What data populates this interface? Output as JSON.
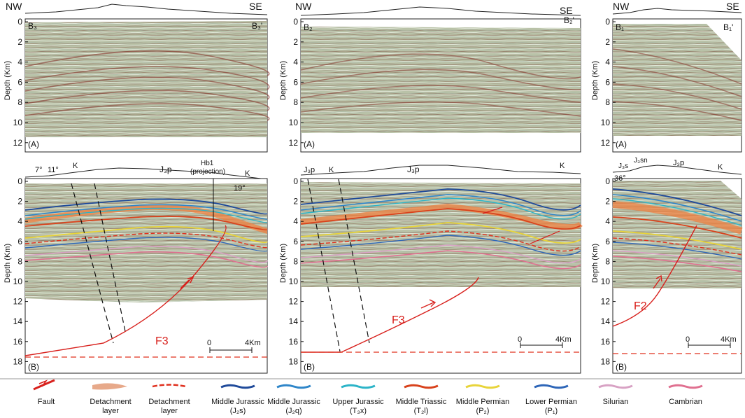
{
  "colors": {
    "fault": "#d8201c",
    "seismic_base": "#b7c0a6",
    "detachment_layer_fill": "#e7a98a",
    "detachment_dashed": "#e0301e",
    "j2s": "#1f4a9a",
    "j2q": "#2f86c9",
    "t3x": "#2cb4c8",
    "t2l": "#d8421c",
    "p2": "#e8d43a",
    "p1": "#2e66b8",
    "silurian": "#d8a2c4",
    "cambrian": "#e07090"
  },
  "panels": {
    "b3_top": {
      "nw": "NW",
      "se": "SE",
      "left_id": "B₃",
      "right_id": "B₃'",
      "tag": "(A)"
    },
    "b2_top": {
      "nw": "NW",
      "se": "SE",
      "left_id": "B₂",
      "right_id": "B₂'",
      "tag": "(A)"
    },
    "b1_top": {
      "nw": "NW",
      "se": "SE",
      "left_id": "B₁",
      "right_id": "B₁'",
      "tag": "(A)"
    },
    "b3_bottom": {
      "tag": "(B)",
      "fault": "F3",
      "scale_zero": "0",
      "scale_end": "4Km",
      "surface_labels": [
        "7°",
        "11°",
        "K",
        "J₃p",
        "K",
        "19°"
      ],
      "well_label": "Hb1",
      "well_sub": "(projection)"
    },
    "b2_bottom": {
      "tag": "(B)",
      "fault": "F3",
      "scale_zero": "0",
      "scale_end": "4Km",
      "surface_labels": [
        "J₃p",
        "K",
        "J₃p",
        "K"
      ]
    },
    "b1_bottom": {
      "tag": "(B)",
      "fault": "F2",
      "scale_zero": "0",
      "scale_end": "4Km",
      "surface_labels": [
        "J₃s",
        "J₃sn",
        "J₃p",
        "K",
        "36°"
      ]
    }
  },
  "axis": {
    "ylabel": "Depth (Km)",
    "top_ticks": [
      "0",
      "2",
      "4",
      "6",
      "8",
      "10",
      "12"
    ],
    "bottom_ticks": [
      "0",
      "2",
      "4",
      "6",
      "8",
      "10",
      "12",
      "14",
      "16",
      "18"
    ]
  },
  "legend": [
    {
      "key": "fault",
      "line1": "Fault",
      "line2": ""
    },
    {
      "key": "detachment_layer_fill",
      "line1": "Detachment",
      "line2": "layer"
    },
    {
      "key": "detachment_dashed",
      "line1": "Detachment",
      "line2": "layer"
    },
    {
      "key": "j2s",
      "line1": "Middle Jurassic",
      "line2": "(J₂s)"
    },
    {
      "key": "j2q",
      "line1": "Middle Jurassic",
      "line2": "(J₂q)"
    },
    {
      "key": "t3x",
      "line1": "Upper Jurassic",
      "line2": "(T₃x)"
    },
    {
      "key": "t2l",
      "line1": "Middle Triassic",
      "line2": "(T₂l)"
    },
    {
      "key": "p2",
      "line1": "Middle Permian",
      "line2": "(P₂)"
    },
    {
      "key": "p1",
      "line1": "Lower Permian",
      "line2": "(P₁)"
    },
    {
      "key": "silurian",
      "line1": "Silurian",
      "line2": ""
    },
    {
      "key": "cambrian",
      "line1": "Cambrian",
      "line2": ""
    }
  ]
}
